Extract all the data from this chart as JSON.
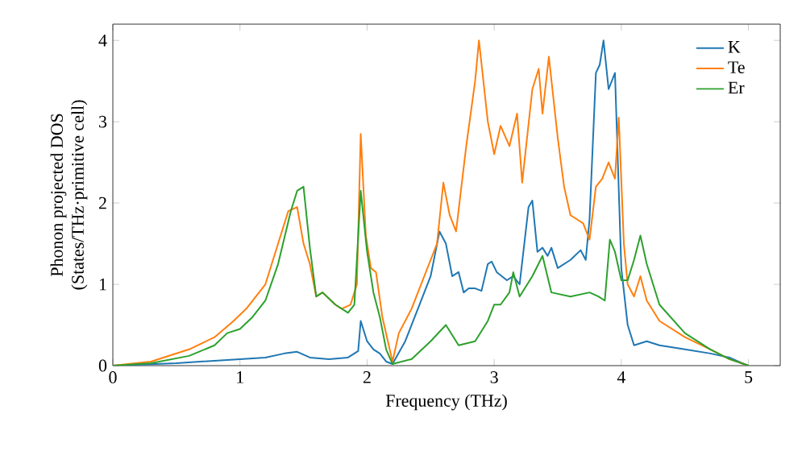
{
  "chart_data": {
    "type": "line",
    "xlabel": "Frequency (THz)",
    "ylabel": "Phonon projected DOS\n(States/THz·primitive cell)",
    "xlim": [
      0,
      5.25
    ],
    "ylim": [
      0,
      4.2
    ],
    "xticks": [
      0,
      1,
      2,
      3,
      4,
      5
    ],
    "yticks": [
      0,
      1,
      2,
      3,
      4
    ],
    "legend": "top right",
    "grid": false,
    "series": [
      {
        "name": "K",
        "color": "#1f77b4",
        "x": [
          0,
          0.5,
          1,
          1.2,
          1.35,
          1.45,
          1.55,
          1.7,
          1.85,
          1.93,
          1.95,
          2.0,
          2.05,
          2.1,
          2.15,
          2.2,
          2.3,
          2.4,
          2.5,
          2.57,
          2.62,
          2.67,
          2.72,
          2.76,
          2.8,
          2.85,
          2.9,
          2.95,
          2.98,
          3.02,
          3.1,
          3.15,
          3.2,
          3.27,
          3.3,
          3.34,
          3.38,
          3.42,
          3.45,
          3.5,
          3.6,
          3.68,
          3.72,
          3.75,
          3.8,
          3.83,
          3.86,
          3.9,
          3.95,
          4.0,
          4.05,
          4.1,
          4.2,
          4.3,
          4.5,
          4.7,
          4.85,
          4.95,
          5.0
        ],
        "values": [
          0,
          0.03,
          0.08,
          0.1,
          0.15,
          0.17,
          0.1,
          0.08,
          0.1,
          0.18,
          0.55,
          0.3,
          0.2,
          0.15,
          0.05,
          0.02,
          0.3,
          0.7,
          1.1,
          1.65,
          1.5,
          1.1,
          1.15,
          0.9,
          0.95,
          0.95,
          0.92,
          1.25,
          1.28,
          1.15,
          1.05,
          1.1,
          1.0,
          1.95,
          2.03,
          1.4,
          1.45,
          1.35,
          1.45,
          1.2,
          1.3,
          1.42,
          1.3,
          1.8,
          3.6,
          3.7,
          4.0,
          3.4,
          3.6,
          1.2,
          0.5,
          0.25,
          0.3,
          0.25,
          0.2,
          0.15,
          0.1,
          0.03,
          0
        ]
      },
      {
        "name": "Te",
        "color": "#ff7f0e",
        "x": [
          0,
          0.3,
          0.6,
          0.8,
          0.95,
          1.05,
          1.2,
          1.3,
          1.38,
          1.45,
          1.5,
          1.55,
          1.6,
          1.65,
          1.75,
          1.8,
          1.87,
          1.92,
          1.95,
          1.99,
          2.03,
          2.07,
          2.12,
          2.2,
          2.25,
          2.35,
          2.5,
          2.55,
          2.6,
          2.65,
          2.7,
          2.78,
          2.85,
          2.88,
          2.95,
          3.0,
          3.05,
          3.12,
          3.18,
          3.22,
          3.3,
          3.35,
          3.38,
          3.43,
          3.5,
          3.55,
          3.6,
          3.65,
          3.7,
          3.75,
          3.8,
          3.85,
          3.9,
          3.95,
          3.98,
          4.02,
          4.05,
          4.1,
          4.15,
          4.2,
          4.3,
          4.5,
          4.7,
          4.85,
          5.0
        ],
        "values": [
          0,
          0.05,
          0.2,
          0.35,
          0.55,
          0.7,
          1.0,
          1.5,
          1.9,
          1.95,
          1.5,
          1.25,
          0.85,
          0.9,
          0.75,
          0.7,
          0.75,
          1.0,
          2.85,
          1.6,
          1.2,
          1.15,
          0.6,
          0.05,
          0.4,
          0.7,
          1.3,
          1.5,
          2.25,
          1.85,
          1.65,
          2.7,
          3.5,
          4.0,
          3.0,
          2.6,
          2.95,
          2.7,
          3.1,
          2.25,
          3.4,
          3.65,
          3.1,
          3.8,
          2.8,
          2.2,
          1.85,
          1.8,
          1.75,
          1.55,
          2.2,
          2.3,
          2.5,
          2.3,
          3.05,
          1.5,
          1.0,
          0.85,
          1.1,
          0.8,
          0.55,
          0.35,
          0.2,
          0.08,
          0
        ]
      },
      {
        "name": "Er",
        "color": "#2ca02c",
        "x": [
          0,
          0.3,
          0.6,
          0.8,
          0.9,
          1.0,
          1.1,
          1.2,
          1.3,
          1.4,
          1.45,
          1.5,
          1.55,
          1.6,
          1.65,
          1.75,
          1.85,
          1.9,
          1.95,
          2.0,
          2.05,
          2.1,
          2.15,
          2.2,
          2.35,
          2.5,
          2.62,
          2.72,
          2.85,
          2.95,
          3.0,
          3.05,
          3.12,
          3.15,
          3.2,
          3.3,
          3.38,
          3.45,
          3.6,
          3.75,
          3.82,
          3.87,
          3.91,
          3.95,
          4.0,
          4.05,
          4.1,
          4.15,
          4.2,
          4.3,
          4.5,
          4.7,
          4.85,
          5.0
        ],
        "values": [
          0,
          0.03,
          0.12,
          0.25,
          0.4,
          0.45,
          0.6,
          0.8,
          1.25,
          1.9,
          2.15,
          2.2,
          1.45,
          0.85,
          0.9,
          0.75,
          0.65,
          0.75,
          2.15,
          1.4,
          0.9,
          0.6,
          0.2,
          0.02,
          0.08,
          0.3,
          0.5,
          0.25,
          0.3,
          0.55,
          0.75,
          0.75,
          0.9,
          1.15,
          0.85,
          1.1,
          1.35,
          0.9,
          0.85,
          0.9,
          0.85,
          0.8,
          1.55,
          1.4,
          1.05,
          1.05,
          1.3,
          1.6,
          1.25,
          0.75,
          0.4,
          0.2,
          0.08,
          0
        ]
      }
    ]
  }
}
